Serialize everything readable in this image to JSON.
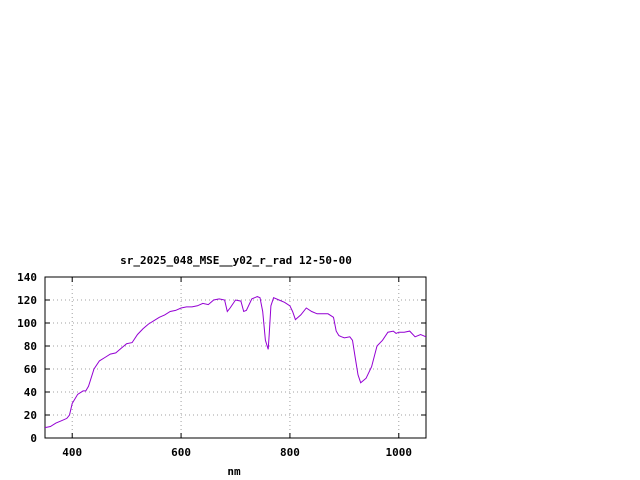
{
  "chart_data": {
    "type": "line",
    "title": "sr_2025_048_MSE__y02_r_rad 12-50-00",
    "xlabel": "nm",
    "ylabel": "",
    "xlim": [
      350,
      1050
    ],
    "ylim": [
      0,
      140
    ],
    "x_ticks": [
      400,
      600,
      800,
      1000
    ],
    "y_ticks": [
      0,
      20,
      40,
      60,
      80,
      100,
      120,
      140
    ],
    "x_tick_labels": [
      "400",
      "600",
      "800",
      "1000"
    ],
    "y_tick_labels": [
      "0",
      "20",
      "40",
      "60",
      "80",
      "100",
      "120",
      "140"
    ],
    "grid": true,
    "grid_style": "dotted",
    "line_color": "#9400d3",
    "series": [
      {
        "x": [
          350,
          360,
          370,
          380,
          390,
          395,
          400,
          410,
          420,
          425,
          430,
          440,
          450,
          460,
          470,
          480,
          490,
          500,
          510,
          520,
          530,
          540,
          550,
          560,
          570,
          580,
          590,
          600,
          610,
          620,
          630,
          640,
          650,
          660,
          670,
          680,
          685,
          690,
          700,
          710,
          715,
          720,
          730,
          740,
          745,
          750,
          755,
          760,
          762,
          765,
          770,
          780,
          790,
          800,
          805,
          810,
          820,
          830,
          840,
          850,
          860,
          870,
          880,
          885,
          890,
          895,
          900,
          910,
          915,
          920,
          925,
          930,
          935,
          940,
          950,
          960,
          970,
          980,
          990,
          995,
          1000,
          1010,
          1020,
          1030,
          1040,
          1050
        ],
        "values": [
          9,
          10,
          13,
          15,
          17,
          20,
          30,
          38,
          41,
          41,
          45,
          60,
          67,
          70,
          73,
          74,
          78,
          82,
          83,
          90,
          95,
          99,
          102,
          105,
          107,
          110,
          111,
          113,
          114,
          114,
          115,
          117,
          116,
          120,
          121,
          120,
          110,
          113,
          120,
          119,
          110,
          111,
          121,
          123,
          122,
          110,
          85,
          77,
          90,
          115,
          122,
          120,
          118,
          115,
          110,
          103,
          107,
          113,
          110,
          108,
          108,
          108,
          105,
          93,
          89,
          88,
          87,
          88,
          85,
          70,
          55,
          48,
          50,
          52,
          62,
          80,
          85,
          92,
          93,
          91,
          92,
          92,
          93,
          88,
          90,
          88
        ]
      }
    ]
  }
}
